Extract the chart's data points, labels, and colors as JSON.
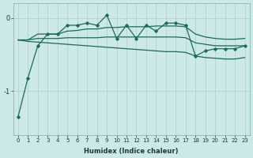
{
  "xlabel": "Humidex (Indice chaleur)",
  "x_values": [
    0,
    1,
    2,
    3,
    4,
    5,
    6,
    7,
    8,
    9,
    10,
    11,
    12,
    13,
    14,
    15,
    16,
    17,
    18,
    19,
    20,
    21,
    22,
    23
  ],
  "zigzag": [
    -1.35,
    -0.82,
    -0.38,
    -0.22,
    -0.22,
    -0.1,
    -0.1,
    -0.07,
    -0.1,
    0.04,
    -0.28,
    -0.1,
    -0.28,
    -0.1,
    -0.18,
    -0.07,
    -0.07,
    -0.1,
    -0.52,
    -0.45,
    -0.42,
    -0.42,
    -0.42,
    -0.38
  ],
  "upper_line": [
    -0.3,
    -0.3,
    -0.22,
    -0.22,
    -0.22,
    -0.18,
    -0.17,
    -0.15,
    -0.15,
    -0.13,
    -0.13,
    -0.12,
    -0.12,
    -0.12,
    -0.11,
    -0.11,
    -0.11,
    -0.12,
    -0.22,
    -0.26,
    -0.28,
    -0.29,
    -0.29,
    -0.28
  ],
  "lower_line": [
    -0.3,
    -0.32,
    -0.33,
    -0.34,
    -0.35,
    -0.36,
    -0.37,
    -0.38,
    -0.39,
    -0.4,
    -0.41,
    -0.42,
    -0.43,
    -0.44,
    -0.45,
    -0.46,
    -0.46,
    -0.47,
    -0.52,
    -0.54,
    -0.55,
    -0.56,
    -0.56,
    -0.54
  ],
  "mid_line": [
    -0.3,
    -0.3,
    -0.28,
    -0.28,
    -0.28,
    -0.27,
    -0.27,
    -0.27,
    -0.27,
    -0.26,
    -0.26,
    -0.26,
    -0.26,
    -0.26,
    -0.26,
    -0.26,
    -0.26,
    -0.27,
    -0.34,
    -0.36,
    -0.38,
    -0.38,
    -0.38,
    -0.38
  ],
  "bg_color": "#cce8e8",
  "grid_color": "#b8d8d8",
  "line_color": "#1a6b5a",
  "ylim": [
    -1.6,
    0.2
  ],
  "yticks": [
    0,
    -1
  ],
  "xticks": [
    0,
    1,
    2,
    3,
    4,
    5,
    6,
    7,
    8,
    9,
    10,
    11,
    12,
    13,
    14,
    15,
    16,
    17,
    18,
    19,
    20,
    21,
    22,
    23
  ]
}
